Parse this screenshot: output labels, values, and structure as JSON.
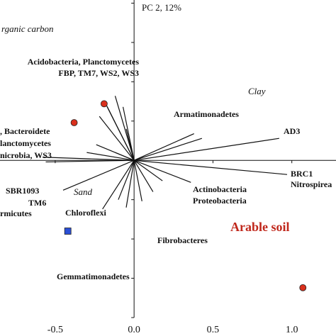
{
  "chart_data": {
    "type": "biplot",
    "y_axis_label": "PC 2, 12%",
    "xlim": [
      -0.85,
      1.28
    ],
    "ylim": [
      -1.0,
      1.02
    ],
    "xticks": [
      -0.5,
      {
        "value": 0,
        "label": "0.0"
      },
      0.5,
      {
        "value": 1,
        "label": "1.0"
      }
    ],
    "yticks": [
      -1,
      -0.75,
      -0.5,
      -0.25,
      0,
      0.25,
      0.5,
      0.75,
      1
    ],
    "vectors": {
      "x": [
        0.92,
        0.97,
        0.43,
        0.38,
        -0.19,
        -0.17,
        -0.12,
        -0.07,
        -0.05,
        -0.22,
        -0.24,
        -0.3,
        -0.56,
        -0.58,
        -0.45,
        -0.2,
        -0.1,
        0.36,
        0.18,
        0.12,
        -0.05,
        0.05,
        -0.12
      ],
      "y": [
        0.14,
        -0.09,
        0.14,
        0.17,
        0.38,
        0.34,
        0.41,
        0.34,
        0.2,
        0.28,
        0.1,
        0.05,
        -0.01,
        0.02,
        -0.19,
        -0.31,
        -0.25,
        -0.14,
        -0.13,
        -0.2,
        -0.3,
        -0.26,
        0.05
      ]
    },
    "circles": {
      "x": [
        -0.19,
        -0.38,
        1.07
      ],
      "y": [
        0.36,
        0.24,
        -0.81
      ],
      "color": "#d9301c"
    },
    "squares": {
      "x": [
        -0.42
      ],
      "y": [
        -0.45
      ],
      "color": "#2a4fd6"
    },
    "labels": [
      "rganic carbon",
      "Acidobacteria, Planctomycetes",
      "FBP, TM7, WS2, WS3",
      "Armatimonadetes",
      "AD3",
      ", Bacteroidete",
      "lanctomycetes",
      "nicrobia, WS3",
      "Clay",
      "BRC1",
      "Nitrospirea",
      "SBR1093",
      "Sand",
      "TM6",
      "Actinobacteria",
      "Proteobacteria",
      "rmicutes",
      "Chloroflexi",
      "Fibrobacteres",
      "Arable soil",
      "Gemmatimonadetes"
    ]
  }
}
